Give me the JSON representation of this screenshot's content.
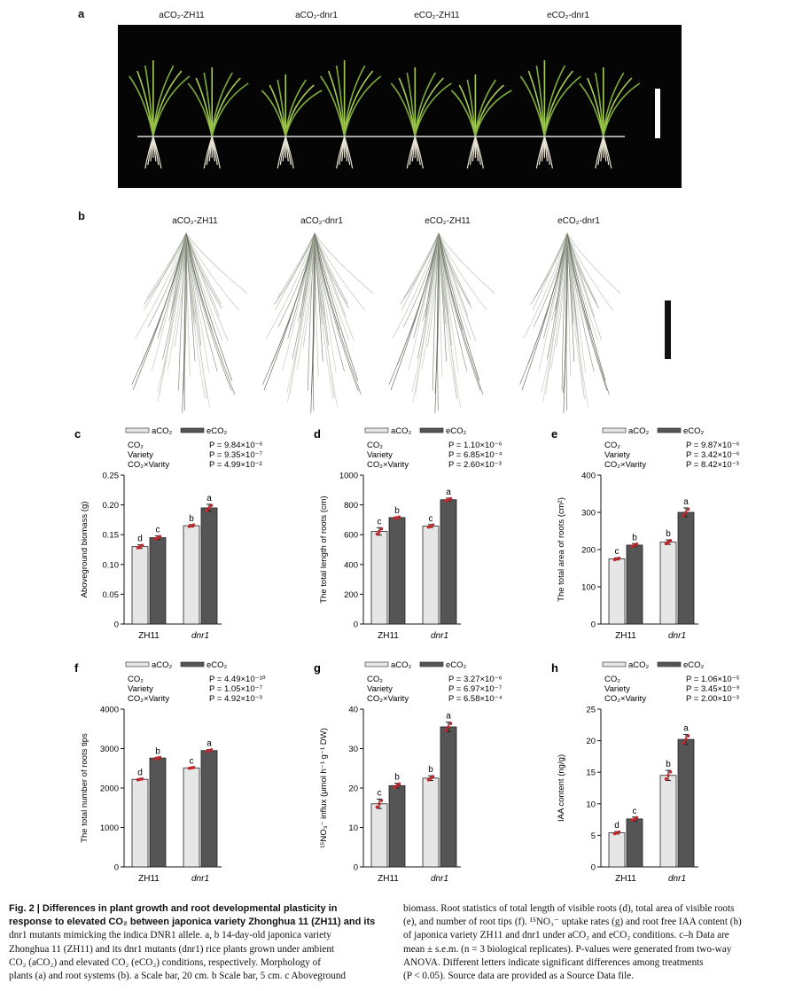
{
  "figure": {
    "panels": {
      "a": {
        "letter": "a",
        "labels": [
          "aCO₂-ZH11",
          "aCO₂-dnr1",
          "eCO₂-ZH11",
          "eCO₂-dnr1"
        ]
      },
      "b": {
        "letter": "b",
        "labels": [
          "aCO₂-ZH11",
          "aCO₂-dnr1",
          "eCO₂-ZH11",
          "eCO₂-dnr1"
        ]
      }
    },
    "legend": [
      "aCO₂",
      "eCO₂"
    ],
    "colors": {
      "aCO2": "#e6e6e6",
      "eCO2": "#555555",
      "points": "#c0282d",
      "scalebar_a": "#ffffff",
      "scalebar_b": "#111111"
    }
  },
  "chart_data": [
    {
      "panel": "c",
      "type": "bar",
      "ylabel": "Aboveground biomass (g)",
      "categories": [
        "ZH11",
        "dnr1"
      ],
      "ylim": [
        0,
        0.25
      ],
      "yticks": [
        "0",
        "0.05",
        "0.10",
        "0.15",
        "0.20",
        "0.25"
      ],
      "series": [
        {
          "name": "aCO₂",
          "values": [
            0.13,
            0.165
          ],
          "errors": [
            0.003,
            0.002
          ],
          "letters": [
            "d",
            "b"
          ]
        },
        {
          "name": "eCO₂",
          "values": [
            0.145,
            0.195
          ],
          "errors": [
            0.003,
            0.006
          ],
          "letters": [
            "c",
            "a"
          ]
        }
      ],
      "stats": [
        {
          "term": "CO₂",
          "p": "P = 9.84×10⁻⁶"
        },
        {
          "term": "Variety",
          "p": "P = 9.35×10⁻⁷"
        },
        {
          "term": "CO₂×Varity",
          "p": "P = 4.99×10⁻²"
        }
      ]
    },
    {
      "panel": "d",
      "type": "bar",
      "ylabel": "The total length of roots (cm)",
      "categories": [
        "ZH11",
        "dnr1"
      ],
      "ylim": [
        0,
        1000
      ],
      "yticks": [
        "0",
        "200",
        "400",
        "600",
        "800",
        "1000"
      ],
      "series": [
        {
          "name": "aCO₂",
          "values": [
            622,
            658
          ],
          "errors": [
            25,
            10
          ],
          "letters": [
            "c",
            "c"
          ]
        },
        {
          "name": "eCO₂",
          "values": [
            715,
            835
          ],
          "errors": [
            5,
            10
          ],
          "letters": [
            "b",
            "a"
          ]
        }
      ],
      "stats": [
        {
          "term": "CO₂",
          "p": "P = 1.10×10⁻⁶"
        },
        {
          "term": "Variety",
          "p": "P = 6.85×10⁻⁴"
        },
        {
          "term": "CO₂×Varity",
          "p": "P = 2.60×10⁻³"
        }
      ]
    },
    {
      "panel": "e",
      "type": "bar",
      "ylabel": "The total area of roots (cm²)",
      "categories": [
        "ZH11",
        "dnr1"
      ],
      "ylim": [
        0,
        400
      ],
      "yticks": [
        "0",
        "100",
        "200",
        "300",
        "400"
      ],
      "series": [
        {
          "name": "aCO₂",
          "values": [
            175,
            220
          ],
          "errors": [
            3,
            6
          ],
          "letters": [
            "c",
            "b"
          ]
        },
        {
          "name": "eCO₂",
          "values": [
            212,
            300
          ],
          "errors": [
            4,
            12
          ],
          "letters": [
            "b",
            "a"
          ]
        }
      ],
      "stats": [
        {
          "term": "CO₂",
          "p": "P = 9.87×10⁻⁶"
        },
        {
          "term": "Variety",
          "p": "P = 3.42×10⁻⁶"
        },
        {
          "term": "CO₂×Varity",
          "p": "P = 8.42×10⁻³"
        }
      ]
    },
    {
      "panel": "f",
      "type": "bar",
      "ylabel": "The total number of roots tips",
      "categories": [
        "ZH11",
        "dnr1"
      ],
      "ylim": [
        0,
        4000
      ],
      "yticks": [
        "0",
        "1000",
        "2000",
        "3000",
        "4000"
      ],
      "series": [
        {
          "name": "aCO₂",
          "values": [
            2220,
            2510
          ],
          "errors": [
            15,
            15
          ],
          "letters": [
            "d",
            "c"
          ]
        },
        {
          "name": "eCO₂",
          "values": [
            2760,
            2950
          ],
          "errors": [
            20,
            25
          ],
          "letters": [
            "b",
            "a"
          ]
        }
      ],
      "stats": [
        {
          "term": "CO₂",
          "p": "P = 4.49×10⁻¹⁰"
        },
        {
          "term": "Variety",
          "p": "P = 1.05×10⁻⁷"
        },
        {
          "term": "CO₂×Varity",
          "p": "P = 4.92×10⁻³"
        }
      ]
    },
    {
      "panel": "g",
      "type": "bar",
      "ylabel": "¹⁵NO₃⁻ influx (μmol h⁻¹ g⁻¹ DW)",
      "categories": [
        "ZH11",
        "dnr1"
      ],
      "ylim": [
        0,
        40
      ],
      "yticks": [
        "0",
        "10",
        "20",
        "30",
        "40"
      ],
      "series": [
        {
          "name": "aCO₂",
          "values": [
            16,
            22.5
          ],
          "errors": [
            1.2,
            0.6
          ],
          "letters": [
            "c",
            "b"
          ]
        },
        {
          "name": "eCO₂",
          "values": [
            20.6,
            35.5
          ],
          "errors": [
            0.6,
            1.2
          ],
          "letters": [
            "b",
            "a"
          ]
        }
      ],
      "stats": [
        {
          "term": "CO₂",
          "p": "P = 3.27×10⁻⁶"
        },
        {
          "term": "Variety",
          "p": "P = 6.97×10⁻⁷"
        },
        {
          "term": "CO₂×Varity",
          "p": "P = 6.58×10⁻⁴"
        }
      ]
    },
    {
      "panel": "h",
      "type": "bar",
      "ylabel": "IAA content (ng/g)",
      "categories": [
        "ZH11",
        "dnr1"
      ],
      "ylim": [
        0,
        25
      ],
      "yticks": [
        "0",
        "5",
        "10",
        "15",
        "20",
        "25"
      ],
      "series": [
        {
          "name": "aCO₂",
          "values": [
            5.4,
            14.5
          ],
          "errors": [
            0.2,
            0.8
          ],
          "letters": [
            "d",
            "b"
          ]
        },
        {
          "name": "eCO₂",
          "values": [
            7.6,
            20.2
          ],
          "errors": [
            0.3,
            0.8
          ],
          "letters": [
            "c",
            "a"
          ]
        }
      ],
      "stats": [
        {
          "term": "CO₂",
          "p": "P = 1.06×10⁻⁵"
        },
        {
          "term": "Variety",
          "p": "P = 3.45×10⁻⁹"
        },
        {
          "term": "CO₂×Varity",
          "p": "P = 2.00×10⁻³"
        }
      ]
    }
  ],
  "caption": {
    "left_lines": [
      "Fig. 2 | Differences in plant growth and root developmental plasticity in",
      "response to elevated CO₂ between japonica variety Zhonghua 11 (ZH11) and its",
      "dnr1 mutants mimicking the indica DNR1 allele. a, b 14-day-old japonica variety",
      "Zhonghua 11 (ZH11) and its dnr1 mutants (dnr1) rice plants grown under ambient",
      "CO₂ (aCO₂) and elevated CO₂ (eCO₂) conditions, respectively. Morphology of",
      "plants (a) and root systems (b). a Scale bar, 20 cm. b Scale bar, 5 cm. c Aboveground"
    ],
    "right_lines": [
      "biomass. Root statistics of total length of visible roots (d), total area of visible roots",
      "(e), and number of root tips (f). ¹⁵NO₃⁻ uptake rates (g) and root free IAA content (h)",
      "of japonica variety ZH11 and dnr1 under aCO₂ and eCO₂ conditions. c–h Data are",
      "mean ± s.e.m. (n = 3 biological replicates). P-values were generated from two-way",
      "ANOVA. Different letters indicate significant differences among treatments",
      "(P < 0.05). Source data are provided as a Source Data file."
    ]
  }
}
